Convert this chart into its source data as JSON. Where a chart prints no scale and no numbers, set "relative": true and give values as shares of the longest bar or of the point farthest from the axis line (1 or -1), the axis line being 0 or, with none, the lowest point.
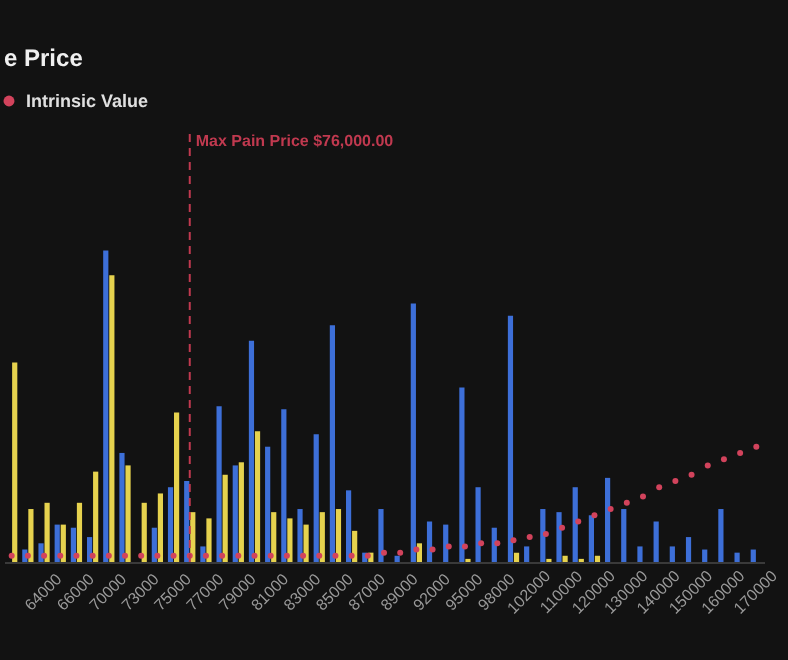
{
  "chart_data": {
    "type": "bar",
    "title": "e Price",
    "relative": true,
    "legend": "top left",
    "marker": "circle",
    "categories": [
      null,
      null,
      "64000",
      null,
      "66000",
      null,
      "70000",
      null,
      "73000",
      null,
      "75000",
      null,
      "77000",
      null,
      "79000",
      null,
      "81000",
      null,
      "83000",
      null,
      "85000",
      null,
      "87000",
      null,
      "89000",
      null,
      "92000",
      null,
      "95000",
      null,
      "98000",
      null,
      "102000",
      null,
      "110000",
      null,
      "120000",
      null,
      "130000",
      null,
      "140000",
      null,
      "150000",
      null,
      "160000",
      null,
      "170000"
    ],
    "series": [
      {
        "type": "bar",
        "color": "#3d6fd8",
        "values": [
          null,
          0.04,
          0.06,
          0.12,
          0.11,
          0.08,
          1,
          0.35,
          0,
          0.11,
          0.24,
          0.26,
          0.05,
          0.5,
          0.31,
          0.71,
          0.37,
          0.49,
          0.17,
          0.41,
          0.76,
          0.23,
          0.03,
          0.17,
          0.02,
          0.83,
          0.13,
          0.12,
          0.56,
          0.24,
          0.11,
          0.79,
          0.05,
          0.17,
          0.16,
          0.24,
          0.15,
          0.27,
          0.17,
          0.05,
          0.13,
          0.05,
          0.08,
          0.04,
          0.17,
          0.03,
          0.04
        ]
      },
      {
        "type": "bar",
        "color": "#e6d24e",
        "values": [
          0.64,
          0.17,
          0.19,
          0.12,
          0.19,
          0.29,
          0.92,
          0.31,
          0.19,
          0.22,
          0.48,
          0.16,
          0.14,
          0.28,
          0.32,
          0.42,
          0.16,
          0.14,
          0.12,
          0.16,
          0.17,
          0.1,
          0.03,
          0,
          0,
          0.06,
          0,
          0,
          0.01,
          0,
          0,
          0.03,
          0,
          0.01,
          0.02,
          0.01,
          0.02,
          0,
          0,
          0,
          0,
          0,
          0,
          0,
          0,
          0,
          0
        ]
      },
      {
        "type": "scatter",
        "name": "Intrinsic Value",
        "color": "#d2435c",
        "values": [
          0.02,
          0.02,
          0.02,
          0.02,
          0.02,
          0.02,
          0.02,
          0.02,
          0.02,
          0.02,
          0.02,
          0.02,
          0.02,
          0.02,
          0.02,
          0.02,
          0.02,
          0.02,
          0.02,
          0.02,
          0.02,
          0.02,
          0.02,
          0.03,
          0.03,
          0.04,
          0.04,
          0.05,
          0.05,
          0.06,
          0.06,
          0.07,
          0.08,
          0.09,
          0.11,
          0.13,
          0.15,
          0.17,
          0.19,
          0.21,
          0.24,
          0.26,
          0.28,
          0.31,
          0.33,
          0.35,
          0.37
        ]
      }
    ],
    "annotations": [
      "Max Pain Price $76,000.00"
    ]
  }
}
